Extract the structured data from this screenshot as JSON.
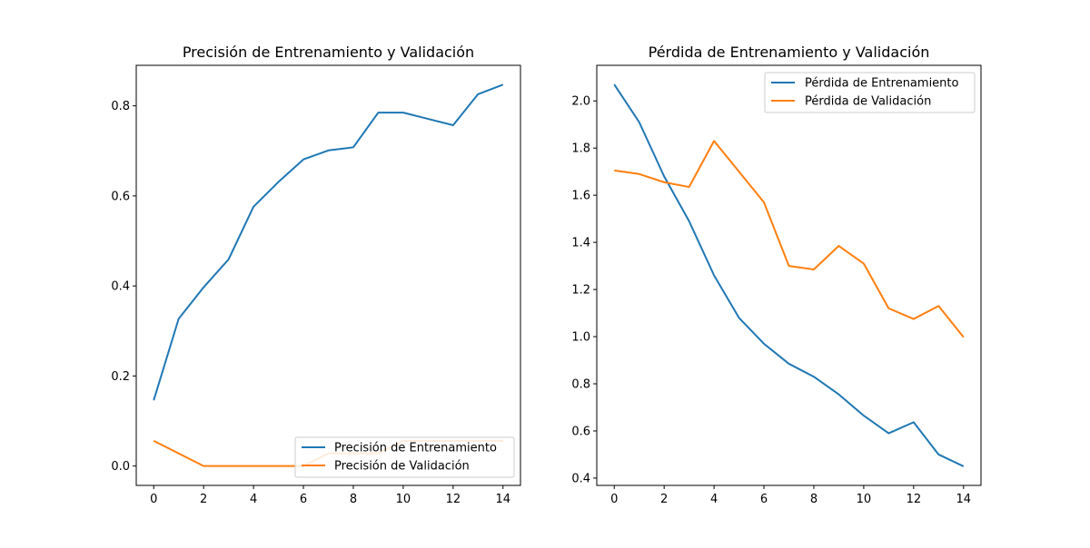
{
  "chart_data": [
    {
      "type": "line",
      "title": "Precisión de Entrenamiento y Validación",
      "xlabel": "",
      "ylabel": "",
      "xlim": [
        -0.7,
        14.7
      ],
      "ylim": [
        -0.043,
        0.89
      ],
      "xticks": [
        0,
        2,
        4,
        6,
        8,
        10,
        12,
        14
      ],
      "yticks": [
        0.0,
        0.2,
        0.4,
        0.6,
        0.8
      ],
      "ytick_labels": [
        "0.0",
        "0.2",
        "0.4",
        "0.6",
        "0.8"
      ],
      "grid": false,
      "legend_position": "lower right",
      "x": [
        0,
        1,
        2,
        3,
        4,
        5,
        6,
        7,
        8,
        9,
        10,
        11,
        12,
        13,
        14
      ],
      "series": [
        {
          "name": "Precisión de Entrenamiento",
          "color": "#1f77b4",
          "values": [
            0.146,
            0.327,
            0.397,
            0.459,
            0.576,
            0.631,
            0.681,
            0.701,
            0.708,
            0.785,
            0.785,
            0.771,
            0.757,
            0.826,
            0.847
          ]
        },
        {
          "name": "Precisión de Validación",
          "color": "#ff7f0e",
          "values": [
            0.056,
            0.028,
            0.0,
            0.0,
            0.0,
            0.0,
            0.0,
            0.028,
            0.028,
            0.028,
            0.056,
            0.056,
            0.056,
            0.056,
            0.056
          ]
        }
      ]
    },
    {
      "type": "line",
      "title": "Pérdida de Entrenamiento y Validación",
      "xlabel": "",
      "ylabel": "",
      "xlim": [
        -0.7,
        14.7
      ],
      "ylim": [
        0.369,
        2.151
      ],
      "xticks": [
        0,
        2,
        4,
        6,
        8,
        10,
        12,
        14
      ],
      "yticks": [
        0.4,
        0.6,
        0.8,
        1.0,
        1.2,
        1.4,
        1.6,
        1.8,
        2.0
      ],
      "ytick_labels": [
        "0.4",
        "0.6",
        "0.8",
        "1.0",
        "1.2",
        "1.4",
        "1.6",
        "1.8",
        "2.0"
      ],
      "grid": false,
      "legend_position": "upper right",
      "x": [
        0,
        1,
        2,
        3,
        4,
        5,
        6,
        7,
        8,
        9,
        10,
        11,
        12,
        13,
        14
      ],
      "series": [
        {
          "name": "Pérdida de Entrenamiento",
          "color": "#1f77b4",
          "values": [
            2.07,
            1.91,
            1.68,
            1.49,
            1.26,
            1.08,
            0.97,
            0.885,
            0.83,
            0.755,
            0.665,
            0.59,
            0.637,
            0.5,
            0.45
          ]
        },
        {
          "name": "Pérdida de Validación",
          "color": "#ff7f0e",
          "values": [
            1.705,
            1.69,
            1.655,
            1.635,
            1.83,
            1.7,
            1.57,
            1.3,
            1.285,
            1.385,
            1.31,
            1.12,
            1.075,
            1.13,
            0.998
          ]
        }
      ]
    }
  ]
}
